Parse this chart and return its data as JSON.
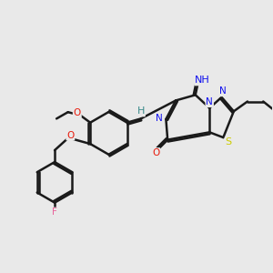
{
  "background_color": "#e9e9e9",
  "bond_color": "#1a1a1a",
  "bond_width": 1.8,
  "dbo": 0.055,
  "F_color": "#e8629a",
  "O_color": "#e8190a",
  "N_color": "#1010ee",
  "S_color": "#cccc00",
  "H_color": "#3a8a8a",
  "imine_color": "#1010ee",
  "figsize": [
    3.0,
    3.0
  ],
  "dpi": 100,
  "xlim": [
    -4.5,
    3.8
  ],
  "ylim": [
    -3.5,
    2.2
  ]
}
